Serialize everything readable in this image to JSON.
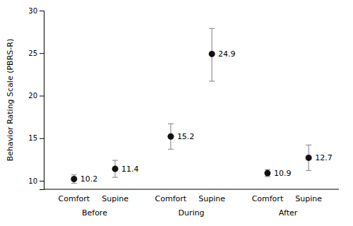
{
  "chart_data": {
    "type": "scatter",
    "categories": [
      "Comfort",
      "Supine",
      "Comfort",
      "Supine",
      "Comfort",
      "Supine"
    ],
    "groups": [
      "Before",
      "During",
      "After"
    ],
    "values": [
      10.2,
      11.4,
      15.2,
      24.9,
      10.9,
      12.7
    ],
    "error_lo": [
      0.5,
      1.0,
      1.5,
      3.2,
      0.4,
      1.5
    ],
    "error_hi": [
      0.5,
      1.0,
      1.5,
      3.0,
      0.4,
      1.5
    ],
    "ylabel": "Behavior Rating Scale (PBRS-R)",
    "ylim": [
      9,
      30
    ],
    "yticks": [
      10,
      15,
      20,
      25,
      30
    ],
    "color": "#111111",
    "data_labels": true,
    "grid": false
  }
}
